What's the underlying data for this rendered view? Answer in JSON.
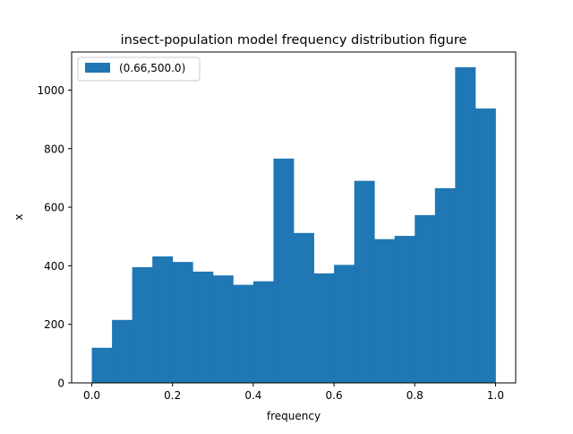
{
  "chart_data": {
    "type": "bar",
    "title": "insect-population model frequency distribution figure",
    "xlabel": "frequency",
    "ylabel": "x",
    "xlim": [
      -0.05,
      1.05
    ],
    "ylim": [
      0,
      1130
    ],
    "bin_edges": [
      0.0,
      0.05,
      0.1,
      0.15,
      0.2,
      0.25,
      0.3,
      0.35,
      0.4,
      0.45,
      0.5,
      0.55,
      0.6,
      0.65,
      0.7,
      0.75,
      0.8,
      0.85,
      0.9,
      0.95,
      1.0
    ],
    "series": [
      {
        "name": "(0.66,500.0)",
        "color": "#1f77b4",
        "values": [
          120,
          215,
          395,
          432,
          413,
          380,
          367,
          335,
          347,
          766,
          512,
          374,
          403,
          690,
          491,
          502,
          573,
          665,
          1078,
          937
        ]
      }
    ],
    "xticks": [
      0.0,
      0.2,
      0.4,
      0.6,
      0.8,
      1.0
    ],
    "xtick_labels": [
      "0.0",
      "0.2",
      "0.4",
      "0.6",
      "0.8",
      "1.0"
    ],
    "yticks": [
      0,
      200,
      400,
      600,
      800,
      1000
    ],
    "ytick_labels": [
      "0",
      "200",
      "400",
      "600",
      "800",
      "1000"
    ],
    "grid": false,
    "legend_position": "upper-left"
  }
}
